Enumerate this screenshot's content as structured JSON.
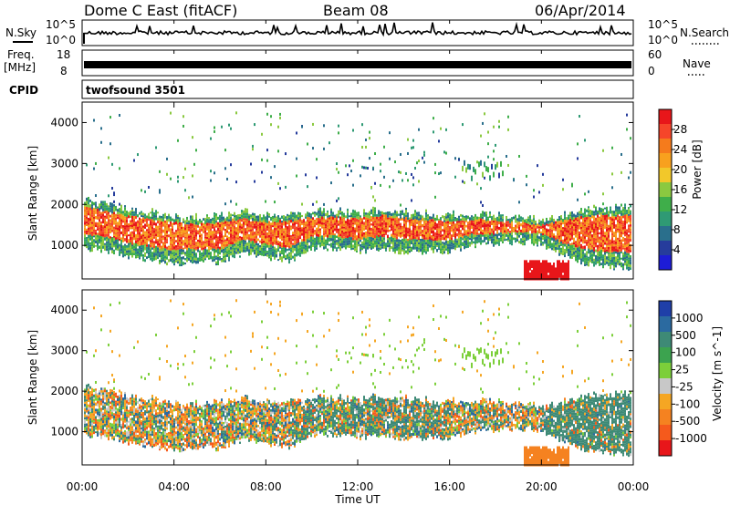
{
  "header": {
    "title": "Dome C East (fitACF)",
    "beam": "Beam 08",
    "date": "06/Apr/2014"
  },
  "top_panels": {
    "nsky_label": "N.Sky",
    "nsky_top": "10^5",
    "nsky_bottom": "10^0",
    "nsearch_label": "N.Search",
    "nsearch_top": "10^5",
    "nsearch_bottom": "10^0",
    "freq_label": "Freq.",
    "freq_unit": "[MHz]",
    "freq_top": "18",
    "freq_bottom": "8",
    "nave_label": "Nave",
    "nave_top": "60",
    "nave_bottom": "0",
    "cpid_label": "CPID",
    "cpid_value": "twofsound 3501"
  },
  "chart_data": [
    {
      "type": "heatmap",
      "name": "power",
      "ylabel": "Slant Range [km]",
      "colorbar_label": "Power [dB]",
      "colorbar_ticks": [
        "28",
        "24",
        "20",
        "16",
        "12",
        "8",
        "4"
      ],
      "colorbar_colors": [
        "#e8161a",
        "#f6452a",
        "#f57b1c",
        "#f8a11e",
        "#f2c82a",
        "#8bc940",
        "#3fae4a",
        "#2f9a74",
        "#2a6f8c",
        "#263c9c",
        "#1d1cd6"
      ],
      "ylim": [
        180,
        4500
      ],
      "yticks": [
        "4000",
        "3000",
        "2000",
        "1000"
      ],
      "yticks_values": [
        4000,
        3000,
        2000,
        1000
      ],
      "main_band": {
        "lower_km": [
          1100,
          1050,
          900,
          800,
          720,
          760,
          760,
          980,
          880,
          780,
          1080,
          1100,
          1000,
          1100,
          1000,
          1020,
          1000,
          1180,
          1200,
          1250,
          1200,
          900,
          700,
          640,
          620
        ],
        "upper_km": [
          2000,
          1900,
          1750,
          1700,
          1620,
          1550,
          1620,
          1700,
          1600,
          1650,
          1720,
          1720,
          1700,
          1750,
          1700,
          1650,
          1620,
          1650,
          1600,
          1550,
          1500,
          1650,
          1800,
          1800,
          1850
        ]
      }
    },
    {
      "type": "heatmap",
      "name": "velocity",
      "ylabel": "Slant Range [km]",
      "colorbar_label": "Velocity [m s^-1]",
      "colorbar_ticks": [
        "1000",
        "500",
        "100",
        "25",
        "-25",
        "-100",
        "-500",
        "-1000"
      ],
      "colorbar_colors": [
        "#1f3fa8",
        "#2b6aa0",
        "#3e8a76",
        "#3ca34f",
        "#7ccf3a",
        "#c8c8c8",
        "#f5a623",
        "#f58220",
        "#f55a1c",
        "#e8161a"
      ],
      "ylim": [
        180,
        4500
      ],
      "yticks": [
        "4000",
        "3000",
        "2000",
        "1000"
      ],
      "yticks_values": [
        4000,
        3000,
        2000,
        1000
      ]
    }
  ],
  "xaxis": {
    "ticks": [
      "00:00",
      "04:00",
      "08:00",
      "12:00",
      "16:00",
      "20:00",
      "00:00"
    ],
    "tick_hours": [
      0,
      4,
      8,
      12,
      16,
      20,
      24
    ],
    "label": "Time UT"
  }
}
